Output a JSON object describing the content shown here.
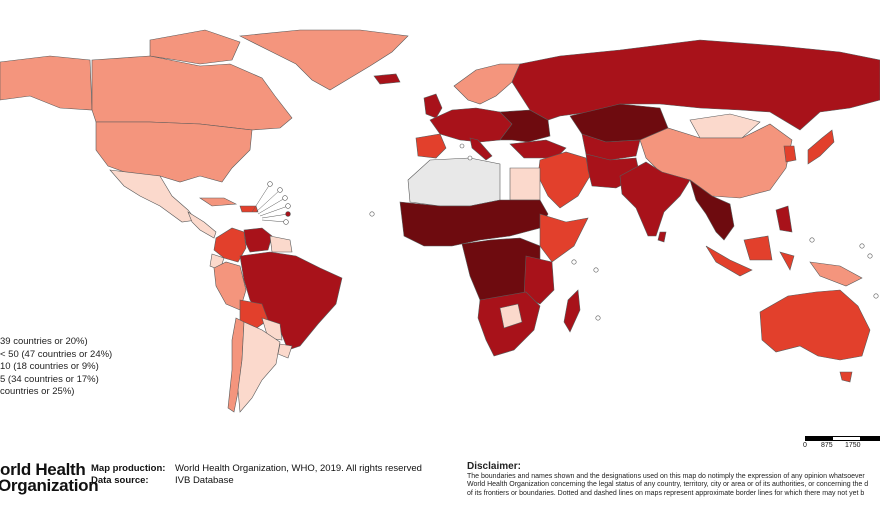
{
  "colors": {
    "very_dark": "#6e0b0f",
    "dark": "#a8121a",
    "medium": "#e2402c",
    "light": "#f4957d",
    "very_light": "#fbd9cc",
    "no_data": "#e8e8e8",
    "border": "#5a5a5a"
  },
  "legend": {
    "rows": [
      "39 countries or 20%)",
      "< 50 (47 countries or 24%)",
      "10 (18 countries or 9%)",
      "5 (34 countries or 17%)",
      "countries or 25%)"
    ]
  },
  "logo": {
    "line1": "orld Health",
    "line2": "Organization"
  },
  "credits": {
    "map_production_label": "Map production:",
    "map_production_value": "World Health Organization, WHO, 2019. All rights reserved",
    "data_source_label": "Data source:",
    "data_source_value": "IVB Database"
  },
  "disclaimer": {
    "title": "Disclaimer:",
    "lines": [
      "The boundaries and names shown and the designations used on this map do notimply the expression of any opinion whatsoever",
      "World Health Organization concerning the legal status of any country, territory, city or area or of its authorities, or concerning the d",
      "of its frontiers or boundaries. Dotted and dashed lines on maps represent approximate border lines for which there may not yet b"
    ]
  },
  "scale_bar": {
    "ticks": [
      "0",
      "875",
      "1750"
    ]
  }
}
